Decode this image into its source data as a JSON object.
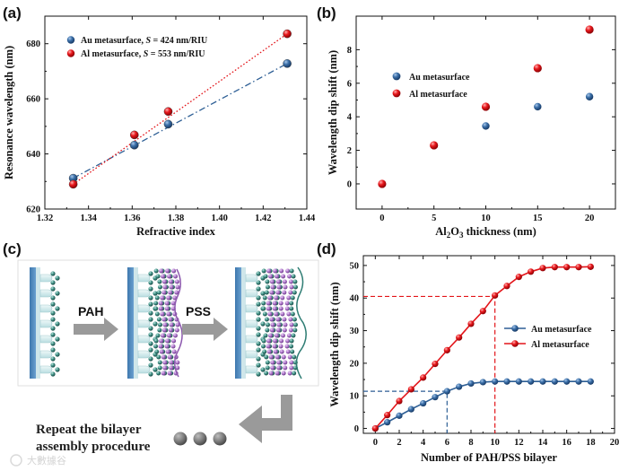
{
  "panel_labels": {
    "a": "(a)",
    "b": "(b)",
    "c": "(c)",
    "d": "(d)"
  },
  "colors": {
    "au": "#2e5f95",
    "al": "#e3151a",
    "arrow": "#9a9a9a",
    "substrate": "#4e86ba",
    "pss": "#b07acc",
    "sphere": "#3f8f85"
  },
  "chart_data": [
    {
      "id": "a",
      "type": "scatter",
      "title": "",
      "xlabel": "Refractive index",
      "ylabel": "Resonance wavelength (nm)",
      "xlim": [
        1.32,
        1.44
      ],
      "ylim": [
        620,
        690
      ],
      "xticks": [
        "1.32",
        "1.34",
        "1.36",
        "1.38",
        "1.40",
        "1.42",
        "1.44"
      ],
      "yticks": [
        "620",
        "640",
        "660",
        "680"
      ],
      "series": [
        {
          "name": "Au metasurface",
          "sensitivity_label": "S",
          "sensitivity_value": " = 424 nm/RIU",
          "color": "#2e5f95",
          "fit": "dash-dot",
          "x": [
            1.333,
            1.361,
            1.3765,
            1.431
          ],
          "y": [
            631.2,
            643.2,
            650.8,
            672.8
          ]
        },
        {
          "name": "Al metasurface",
          "sensitivity_label": "S",
          "sensitivity_value": " = 553 nm/RIU",
          "color": "#e3151a",
          "fit": "dotted",
          "x": [
            1.333,
            1.361,
            1.3765,
            1.431
          ],
          "y": [
            629.0,
            646.9,
            655.4,
            683.6
          ]
        }
      ],
      "legend_position": "top-left"
    },
    {
      "id": "b",
      "type": "scatter",
      "title": "",
      "xlabel_main": "Al",
      "xlabel_sub": "2",
      "xlabel_mid": "O",
      "xlabel_sub2": "3",
      "xlabel_tail": " thickness (nm)",
      "ylabel": "Wavelength dip shift (nm)",
      "xlim": [
        -2.5,
        22.5
      ],
      "ylim": [
        -1.5,
        10
      ],
      "xticks": [
        "0",
        "5",
        "10",
        "15",
        "20"
      ],
      "yticks": [
        "0",
        "2",
        "4",
        "6",
        "8"
      ],
      "series": [
        {
          "name": "Au metasurface",
          "color": "#2e5f95",
          "x": [
            10,
            15,
            20
          ],
          "y": [
            3.45,
            4.6,
            5.2
          ]
        },
        {
          "name": "Al metasurface",
          "color": "#e3151a",
          "x": [
            0,
            5,
            10,
            15,
            20
          ],
          "y": [
            0.0,
            2.3,
            4.6,
            6.9,
            9.2
          ]
        }
      ],
      "legend_position": "center-left"
    },
    {
      "id": "d",
      "type": "line",
      "title": "",
      "xlabel": "Number of PAH/PSS bilayer",
      "ylabel": "Wavelength dip shift (nm)",
      "xlim": [
        -1,
        20
      ],
      "ylim": [
        -1.5,
        53
      ],
      "xticks": [
        "0",
        "2",
        "4",
        "6",
        "8",
        "10",
        "12",
        "14",
        "16",
        "18",
        "20"
      ],
      "yticks": [
        "0",
        "10",
        "20",
        "30",
        "40",
        "50"
      ],
      "series": [
        {
          "name": "Au metasurface",
          "color": "#2e5f95",
          "x": [
            0,
            1,
            2,
            3,
            4,
            5,
            6,
            7,
            8,
            9,
            10,
            11,
            12,
            13,
            14,
            15,
            16,
            17,
            18
          ],
          "y": [
            0,
            1.9,
            3.9,
            5.9,
            7.7,
            9.6,
            11.4,
            12.8,
            13.8,
            14.2,
            14.4,
            14.4,
            14.4,
            14.4,
            14.4,
            14.4,
            14.4,
            14.4,
            14.4
          ]
        },
        {
          "name": "Al metasurface",
          "color": "#e3151a",
          "x": [
            0,
            1,
            2,
            3,
            4,
            5,
            6,
            7,
            8,
            9,
            10,
            11,
            12,
            13,
            14,
            15,
            16,
            17,
            18
          ],
          "y": [
            0,
            4.1,
            8.4,
            12.0,
            15.6,
            19.8,
            24.0,
            27.9,
            32.1,
            36.0,
            40.8,
            43.7,
            46.5,
            48.1,
            49.2,
            49.5,
            49.5,
            49.5,
            49.6
          ]
        }
      ],
      "guides": [
        {
          "series": "Au metasurface",
          "x": 6,
          "y": 11.4
        },
        {
          "series": "Al metasurface",
          "x": 10,
          "y": 40.5
        }
      ],
      "legend_position": "center-right"
    }
  ],
  "diagram_c": {
    "pah_label": "PAH",
    "pss_label": "PSS",
    "repeat_line1": "Repeat the bilayer",
    "repeat_line2": "assembly procedure"
  },
  "watermark": "大數據谷"
}
